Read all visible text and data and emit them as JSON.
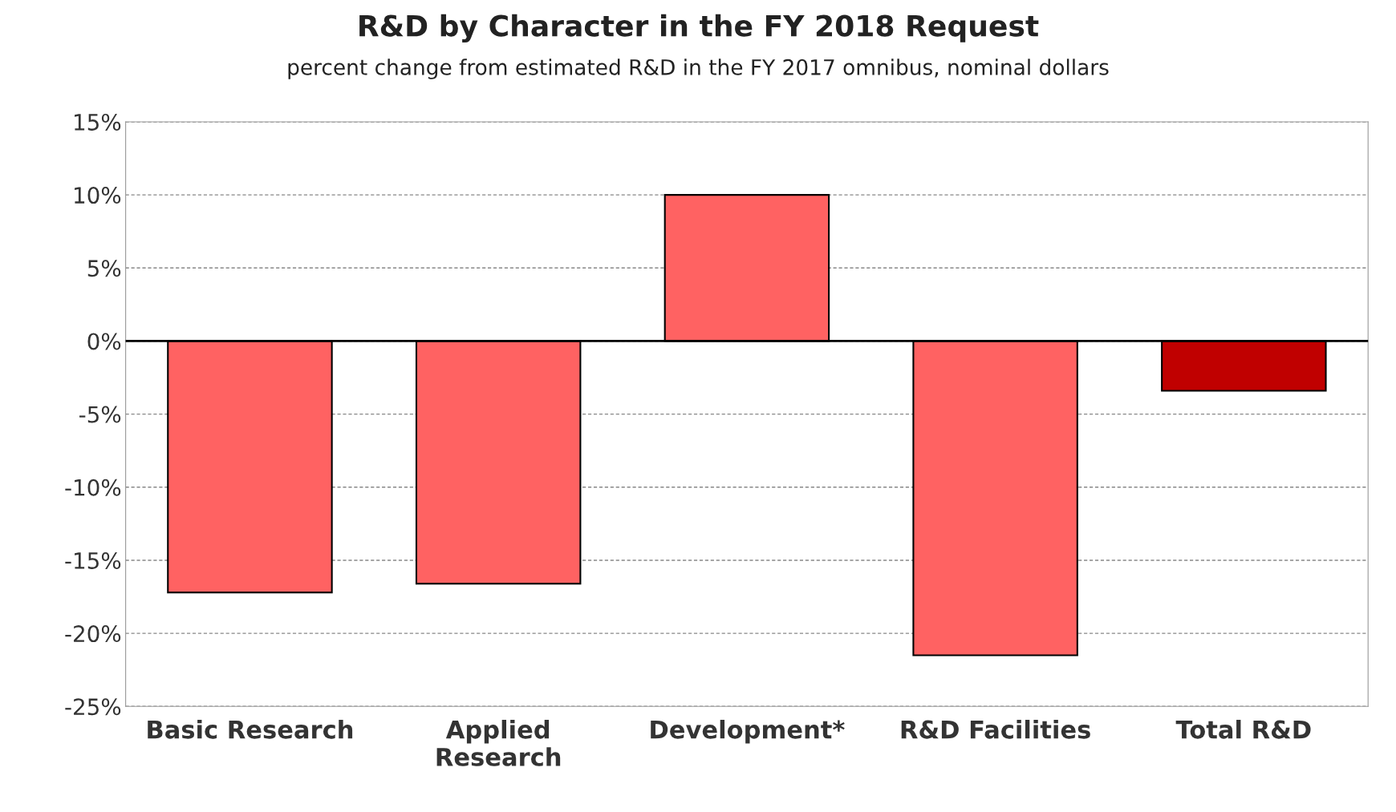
{
  "chart_data": {
    "type": "bar",
    "title": "R&D by Character in the FY 2018 Request",
    "subtitle": "percent change from estimated R&D in the FY 2017 omnibus, nominal dollars",
    "categories": [
      "Basic Research",
      "Applied\nResearch",
      "Development*",
      "R&D Facilities",
      "Total R&D"
    ],
    "values": [
      -17.2,
      -16.6,
      10.0,
      -21.5,
      -3.4
    ],
    "colors": [
      "#ff6262",
      "#ff6262",
      "#ff6262",
      "#ff6262",
      "#c00000"
    ],
    "ylim": [
      -25,
      15
    ],
    "yticks": [
      {
        "value": -25,
        "label": "-25%"
      },
      {
        "value": -20,
        "label": "-20%"
      },
      {
        "value": -15,
        "label": "-15%"
      },
      {
        "value": -10,
        "label": "-10%"
      },
      {
        "value": -5,
        "label": "-5%"
      },
      {
        "value": 0,
        "label": "0%"
      },
      {
        "value": 5,
        "label": "5%"
      },
      {
        "value": 10,
        "label": "10%"
      },
      {
        "value": 15,
        "label": "15%"
      }
    ],
    "grid": "y",
    "legend": false
  }
}
